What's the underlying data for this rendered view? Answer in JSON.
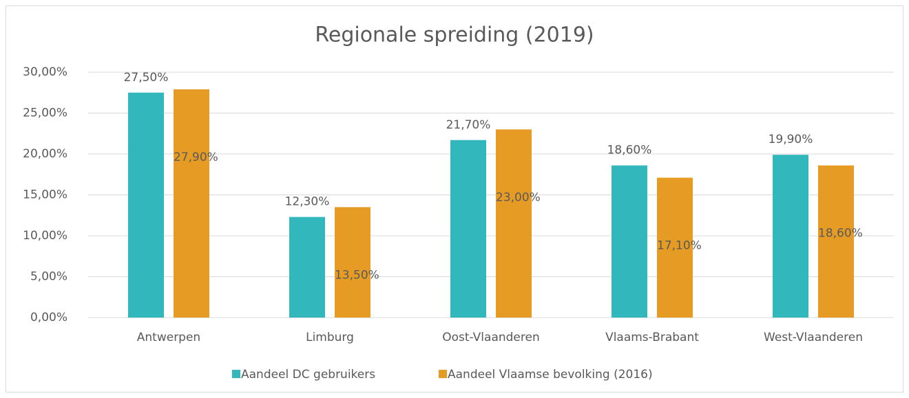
{
  "chart_data": {
    "type": "bar",
    "title": "Regionale spreiding (2019)",
    "categories": [
      "Antwerpen",
      "Limburg",
      "Oost-Vlaanderen",
      "Vlaams-Brabant",
      "West-Vlaanderen"
    ],
    "series": [
      {
        "name": "Aandeel DC gebruikers",
        "color": "#31b7bc",
        "values": [
          27.5,
          12.3,
          21.7,
          18.6,
          19.9
        ],
        "value_labels": [
          "27,50%",
          "12,30%",
          "21,70%",
          "18,60%",
          "19,90%"
        ]
      },
      {
        "name": "Aandeel Vlaamse bevolking (2016)",
        "color": "#e69c24",
        "values": [
          27.9,
          13.5,
          23.0,
          17.1,
          18.6
        ],
        "value_labels": [
          "27,90%",
          "13,50%",
          "23,00%",
          "17,10%",
          "18,60%"
        ]
      }
    ],
    "ylim": [
      0,
      30
    ],
    "yticks": [
      {
        "value": 0,
        "label": "0,00%"
      },
      {
        "value": 5,
        "label": "5,00%"
      },
      {
        "value": 10,
        "label": "10,00%"
      },
      {
        "value": 15,
        "label": "15,00%"
      },
      {
        "value": 20,
        "label": "20,00%"
      },
      {
        "value": 25,
        "label": "25,00%"
      },
      {
        "value": 30,
        "label": "30,00%"
      }
    ],
    "grid": true,
    "legend": "bottom"
  }
}
